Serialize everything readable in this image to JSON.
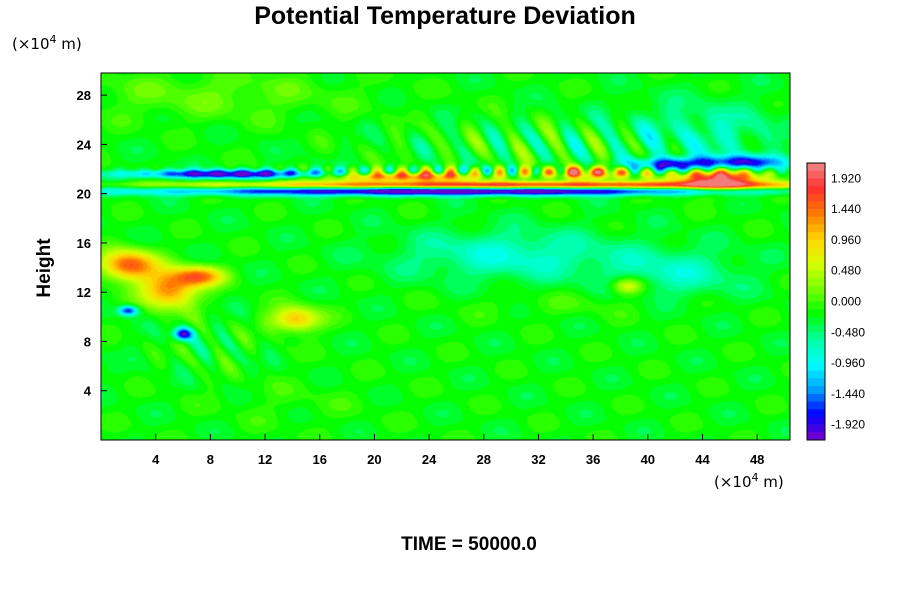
{
  "chart_data": {
    "type": "heatmap",
    "title": "Potential Temperature Deviation",
    "ylabel": "Height",
    "x_unit": {
      "prefix": "(×10",
      "exp": "4",
      "suffix": " m)"
    },
    "y_unit": {
      "prefix": "(×10",
      "exp": "4",
      "suffix": " m)"
    },
    "xlim": [
      0,
      50.4
    ],
    "ylim": [
      0,
      29.8
    ],
    "x_ticks": [
      "4",
      "8",
      "12",
      "16",
      "20",
      "24",
      "28",
      "32",
      "36",
      "40",
      "44",
      "48"
    ],
    "y_ticks": [
      "4",
      "8",
      "12",
      "16",
      "20",
      "24",
      "28"
    ],
    "colorbar": {
      "labels": [
        "1.920",
        "1.440",
        "0.960",
        "0.480",
        "0.000",
        "-0.480",
        "-0.960",
        "-1.440",
        "-1.920"
      ],
      "min": -2.16,
      "max": 2.16,
      "levels": 36,
      "colors_top_to_bottom": [
        "#f08a8a",
        "#ff3030",
        "#ff7a00",
        "#ffd400",
        "#d8ff00",
        "#78ff00",
        "#00ff00",
        "#00ffa0",
        "#00ffff",
        "#00a0ff",
        "#0000ff",
        "#7a00c8"
      ]
    },
    "background_value": -0.2,
    "field_features": [
      {
        "x": 26,
        "y": 20.2,
        "sx": 22,
        "sy": 0.35,
        "v": -2.2
      },
      {
        "x": 30,
        "y": 20.7,
        "sx": 22,
        "sy": 0.3,
        "v": 2.1
      },
      {
        "x": 10,
        "y": 21.6,
        "sx": 8,
        "sy": 0.35,
        "v": -2.0
      },
      {
        "x": 22,
        "y": 21.4,
        "sx": 6,
        "sy": 0.4,
        "v": 1.8
      },
      {
        "x": 45,
        "y": 21.3,
        "sx": 3.5,
        "sy": 1.0,
        "v": 2.2
      },
      {
        "x": 42,
        "y": 22.3,
        "sx": 3,
        "sy": 0.6,
        "v": -2.0
      },
      {
        "x": 47,
        "y": 22.5,
        "sx": 3,
        "sy": 0.6,
        "v": -1.8
      },
      {
        "x": 36,
        "y": 21.7,
        "sx": 4,
        "sy": 0.5,
        "v": 1.5
      },
      {
        "x": 2,
        "y": 14.2,
        "sx": 2,
        "sy": 1.2,
        "v": 1.8
      },
      {
        "x": 5,
        "y": 12.2,
        "sx": 2,
        "sy": 1.5,
        "v": 1.6
      },
      {
        "x": 7.2,
        "y": 13.3,
        "sx": 1.8,
        "sy": 0.8,
        "v": 1.5
      },
      {
        "x": 14.2,
        "y": 9.8,
        "sx": 1.8,
        "sy": 1.0,
        "v": 1.3
      },
      {
        "x": 6,
        "y": 8.6,
        "sx": 0.7,
        "sy": 0.5,
        "v": -1.8
      },
      {
        "x": 2,
        "y": 10.5,
        "sx": 0.7,
        "sy": 0.4,
        "v": -1.6
      },
      {
        "x": 38.5,
        "y": 12.5,
        "sx": 1.2,
        "sy": 0.7,
        "v": 1.0
      },
      {
        "x": 30,
        "y": 15,
        "sx": 8,
        "sy": 2,
        "v": -0.6
      },
      {
        "x": 42,
        "y": 13.5,
        "sx": 5,
        "sy": 2,
        "v": -0.5
      },
      {
        "x": 34,
        "y": 11,
        "sx": 8,
        "sy": 1,
        "v": 0.15
      },
      {
        "x": 8,
        "y": 28,
        "sx": 10,
        "sy": 2,
        "v": 0.3
      },
      {
        "x": 44,
        "y": 25,
        "sx": 6,
        "sy": 2.5,
        "v": -0.45
      },
      {
        "x": 14,
        "y": 3,
        "sx": 6,
        "sy": 2,
        "v": 0.1
      }
    ],
    "wave_features": [
      {
        "x": 34,
        "y": 24,
        "sx": 12,
        "sy": 2.0,
        "amp": 0.65,
        "kx": 2.2,
        "ky": 1.2
      },
      {
        "x": 8,
        "y": 7.5,
        "sx": 4,
        "sy": 2.5,
        "amp": 0.35,
        "kx": 2.5,
        "ky": 1.6
      },
      {
        "x": 30,
        "y": 21.8,
        "sx": 18,
        "sy": 0.45,
        "amp": 1.2,
        "kx": 3.5,
        "ky": 0.0
      }
    ]
  },
  "footer": {
    "time_label": "TIME = 50000.0"
  }
}
